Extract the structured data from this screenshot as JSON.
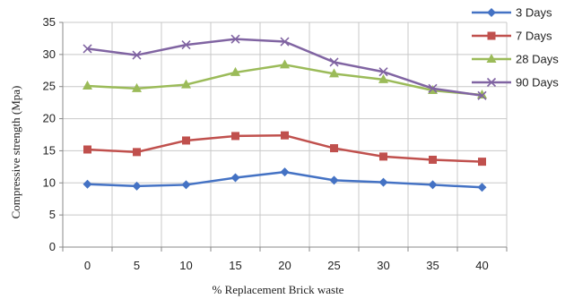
{
  "chart_data": {
    "type": "line",
    "title": "",
    "xlabel": "% Replacement Brick waste",
    "ylabel": "Compressive strength (Mpa)",
    "x": [
      0,
      5,
      10,
      15,
      20,
      25,
      30,
      35,
      40
    ],
    "ylim": [
      0,
      35
    ],
    "yticks": [
      0,
      5,
      10,
      15,
      20,
      25,
      30,
      35
    ],
    "grid": true,
    "legend": "right",
    "series": [
      {
        "name": "3 Days",
        "color": "#4472C4",
        "marker": "diamond",
        "values": [
          9.8,
          9.5,
          9.7,
          10.8,
          11.7,
          10.4,
          10.1,
          9.7,
          9.3
        ]
      },
      {
        "name": "7 Days",
        "color": "#C0504D",
        "marker": "square",
        "values": [
          15.2,
          14.8,
          16.6,
          17.3,
          17.4,
          15.4,
          14.1,
          13.6,
          13.3
        ]
      },
      {
        "name": "28 Days",
        "color": "#9BBB59",
        "marker": "triangle",
        "values": [
          25.1,
          24.7,
          25.3,
          27.2,
          28.4,
          27.0,
          26.1,
          24.4,
          23.7
        ]
      },
      {
        "name": "90 Days",
        "color": "#8064A2",
        "marker": "x",
        "values": [
          30.9,
          29.9,
          31.5,
          32.4,
          32.0,
          28.8,
          27.3,
          24.7,
          23.6
        ]
      }
    ]
  }
}
